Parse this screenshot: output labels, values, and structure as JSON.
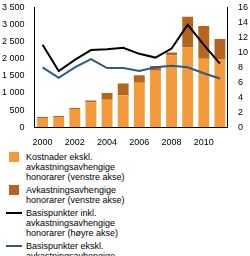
{
  "chart_data": {
    "type": "bar",
    "stacked": true,
    "grid": false,
    "legend": "bottom",
    "categories": [
      "2000",
      null,
      "2002",
      null,
      "2004",
      null,
      "2006",
      null,
      "2008",
      null,
      "2010",
      null
    ],
    "ylim": [
      0,
      3500
    ],
    "yticks": [
      0,
      500,
      {
        "value": 1000,
        "label": "1 000"
      },
      {
        "value": 1500,
        "label": "1 500"
      },
      {
        "value": 2000,
        "label": "2 000"
      },
      {
        "value": 2500,
        "label": "2 500"
      },
      {
        "value": 3000,
        "label": "3 000"
      },
      {
        "value": 3500,
        "label": "3 500"
      }
    ],
    "y2lim": [
      0,
      16
    ],
    "y2ticks": [
      0,
      2,
      4,
      6,
      8,
      10,
      12,
      14,
      16
    ],
    "series": [
      {
        "name": "Kostnader ekskl. avkastningsavhengige honorarer (venstre akse)",
        "type": "bar",
        "color": "#f39a3a",
        "values": [
          270,
          300,
          530,
          720,
          800,
          930,
          1300,
          1650,
          2100,
          2330,
          2000,
          1980
        ]
      },
      {
        "name": "Avkastningsavhengige honorarer (venstre akse)",
        "type": "bar",
        "color": "#b5651d",
        "values": [
          30,
          30,
          30,
          60,
          200,
          350,
          220,
          140,
          80,
          900,
          960,
          600
        ]
      },
      {
        "name": "Basispunkter inkl. avkastningsavhengige honorarer (høyre akse)",
        "type": "line",
        "axis": "y2",
        "color": "#000000",
        "values": [
          11.0,
          7.5,
          9.0,
          10.3,
          10.4,
          10.6,
          9.8,
          9.3,
          10.5,
          13.7,
          11.0,
          8.5
        ]
      },
      {
        "name": "Basispunkter ekskl. avkastningsavhengige honorarer (høyre akse)",
        "type": "line",
        "axis": "y2",
        "color": "#2a5b8c",
        "values": [
          8.0,
          6.6,
          8.0,
          9.1,
          7.9,
          7.9,
          7.5,
          8.0,
          8.2,
          8.0,
          7.2,
          6.5
        ]
      }
    ]
  }
}
